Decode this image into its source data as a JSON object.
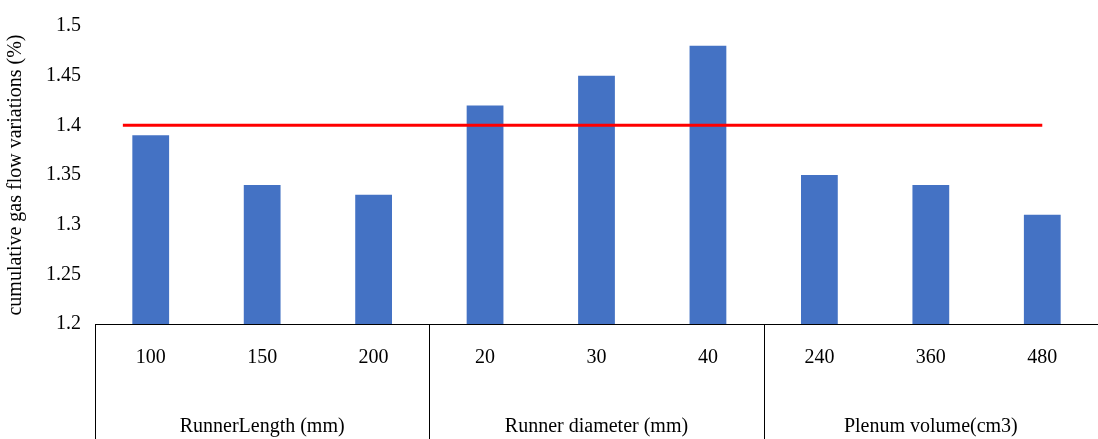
{
  "chart_data": {
    "type": "bar",
    "ylabel": "cumulative gas flow variations (%)",
    "categories": [
      "100",
      "150",
      "200",
      "20",
      "30",
      "40",
      "240",
      "360",
      "480"
    ],
    "values": [
      1.39,
      1.34,
      1.33,
      1.42,
      1.45,
      1.48,
      1.35,
      1.34,
      1.31
    ],
    "color": "#4472c4",
    "ylim": [
      1.2,
      1.5
    ],
    "yticks": [
      1.2,
      1.25,
      1.3,
      1.35,
      1.4,
      1.45,
      1.5
    ],
    "ref_lines": [
      {
        "axis": "y",
        "value": 1.4,
        "color": "#ff0000"
      }
    ],
    "annotations": [
      "RunnerLength (mm)",
      "Runner diameter (mm)",
      "Plenum volume(cm3)"
    ],
    "grid": false,
    "legend": false
  }
}
